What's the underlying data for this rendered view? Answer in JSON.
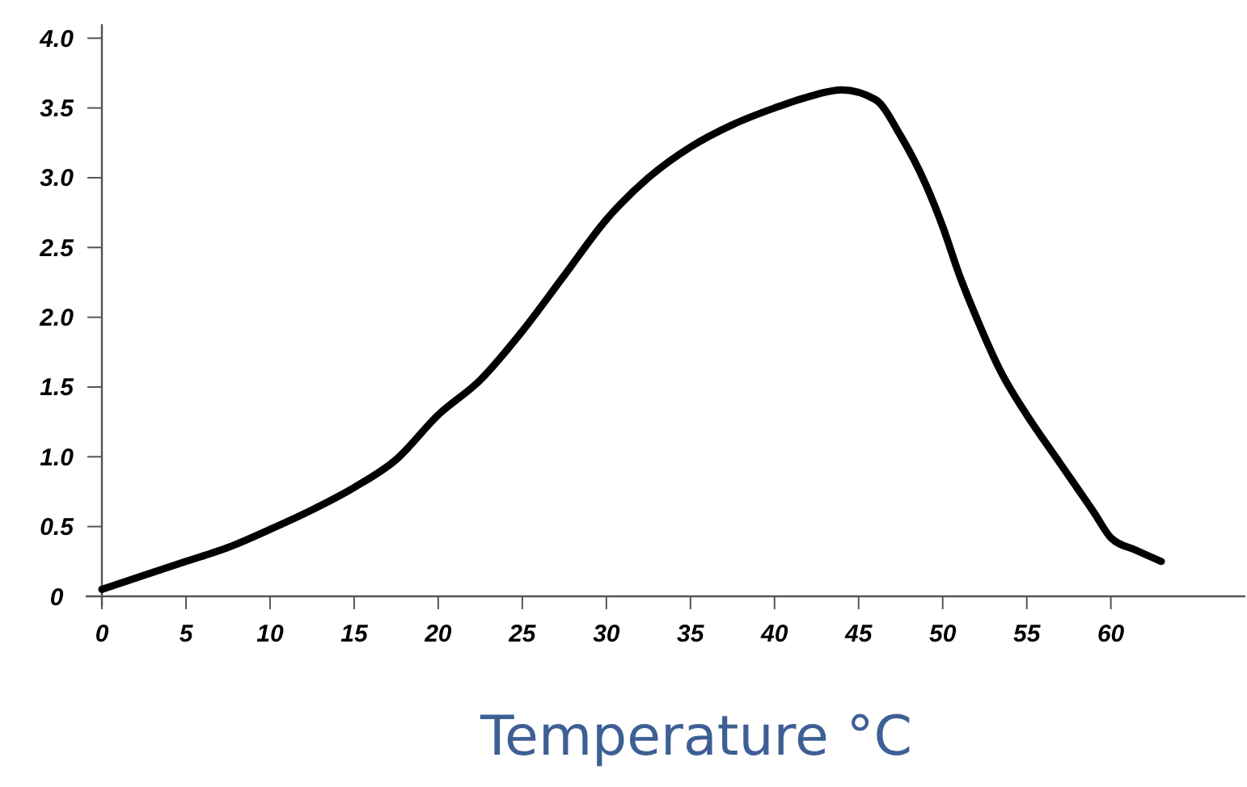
{
  "chart_data": {
    "type": "line",
    "xlabel": "Temperature °C",
    "x": [
      0,
      2.5,
      5,
      7.5,
      10,
      12.5,
      15,
      17.5,
      20,
      22.5,
      25,
      27.5,
      30,
      32.5,
      35,
      37.5,
      40,
      42,
      44,
      46,
      47.5,
      49,
      50,
      51,
      52,
      53.5,
      55,
      57,
      59,
      60,
      61.5,
      63
    ],
    "series": [
      {
        "color": "#000000",
        "values": [
          0.05,
          0.15,
          0.25,
          0.35,
          0.48,
          0.62,
          0.78,
          0.98,
          1.3,
          1.55,
          1.9,
          2.3,
          2.7,
          3.0,
          3.22,
          3.38,
          3.5,
          3.58,
          3.63,
          3.56,
          3.3,
          2.95,
          2.65,
          2.3,
          2.0,
          1.6,
          1.3,
          0.95,
          0.6,
          0.42,
          0.33,
          0.25
        ]
      }
    ],
    "xlim": [
      0,
      68
    ],
    "ylim": [
      0,
      4.1
    ],
    "xticks": [
      0,
      5,
      10,
      15,
      20,
      25,
      30,
      35,
      40,
      45,
      50,
      55,
      60
    ],
    "yticks": [
      0,
      0.5,
      {
        "value": 1.0,
        "label": "1.0"
      },
      1.5,
      {
        "value": 2.0,
        "label": "2.0"
      },
      2.5,
      {
        "value": 3.0,
        "label": "3.0"
      },
      3.5,
      {
        "value": 4.0,
        "label": "4.0"
      }
    ],
    "grid": false,
    "marker": "none",
    "line_style": "solid"
  }
}
